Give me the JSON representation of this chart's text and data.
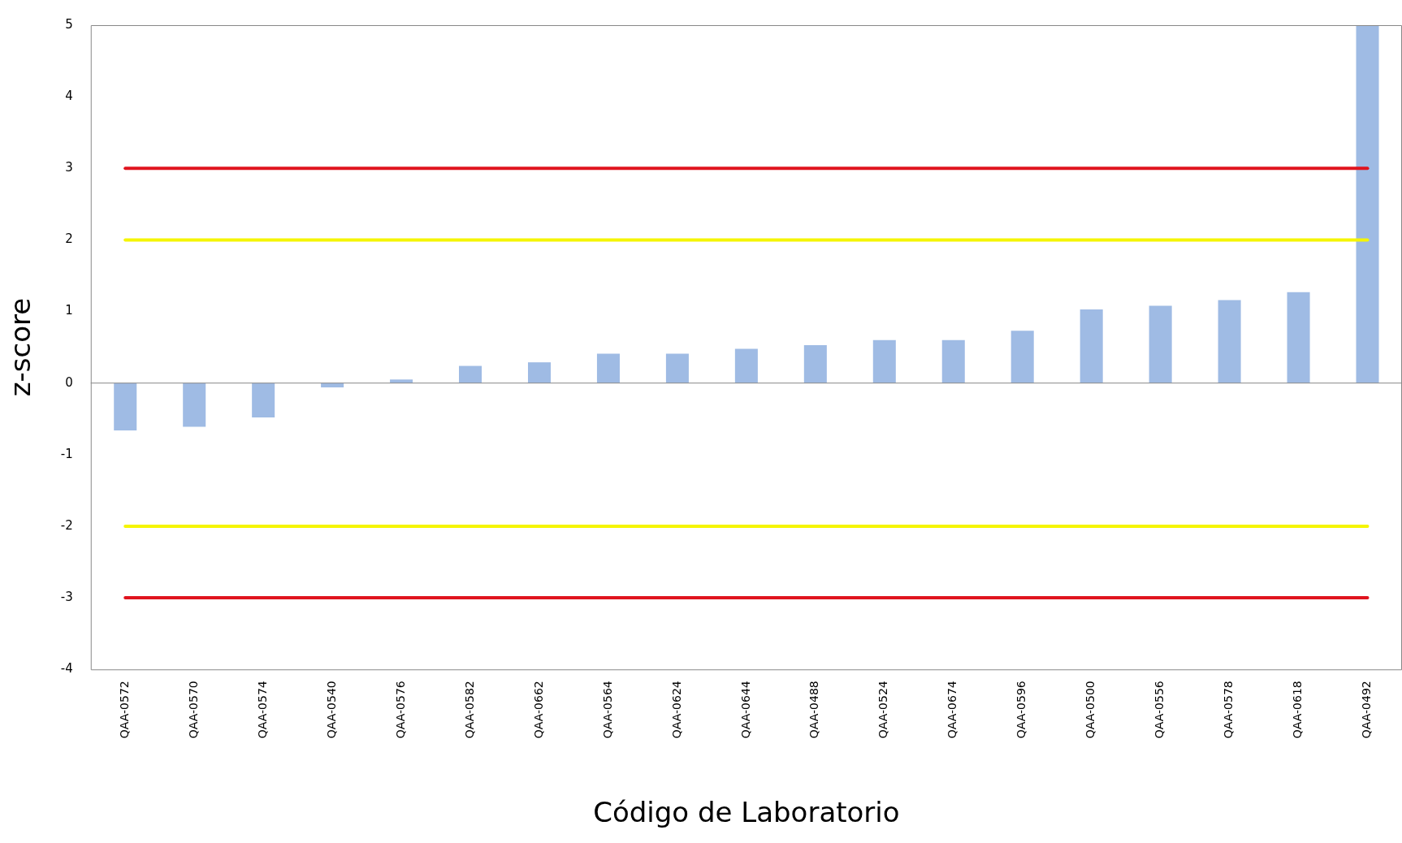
{
  "chart_data": {
    "type": "bar",
    "xlabel": "Código de Laboratorio",
    "ylabel": "z-score",
    "categories": [
      "QAA-0572",
      "QAA-0570",
      "QAA-0574",
      "QAA-0540",
      "QAA-0576",
      "QAA-0582",
      "QAA-0662",
      "QAA-0564",
      "QAA-0624",
      "QAA-0644",
      "QAA-0488",
      "QAA-0524",
      "QAA-0674",
      "QAA-0596",
      "QAA-0500",
      "QAA-0556",
      "QAA-0578",
      "QAA-0618",
      "QAA-0492"
    ],
    "values": [
      -0.66,
      -0.61,
      -0.48,
      -0.06,
      0.05,
      0.24,
      0.29,
      0.41,
      0.41,
      0.48,
      0.53,
      0.6,
      0.6,
      0.73,
      1.03,
      1.08,
      1.16,
      1.27,
      5
    ],
    "color": "#9fbbe4",
    "ylim": [
      -4,
      5
    ],
    "yticks": [
      -4,
      -3,
      -2,
      -1,
      0,
      1,
      2,
      3,
      4,
      5
    ],
    "grid": false,
    "legend": false,
    "ref_lines": [
      {
        "axis": "y",
        "value": 3,
        "color": "#e0141e"
      },
      {
        "axis": "y",
        "value": 2,
        "color": "#f5f500"
      },
      {
        "axis": "y",
        "value": -2,
        "color": "#f5f500"
      },
      {
        "axis": "y",
        "value": -3,
        "color": "#e0141e"
      }
    ]
  }
}
